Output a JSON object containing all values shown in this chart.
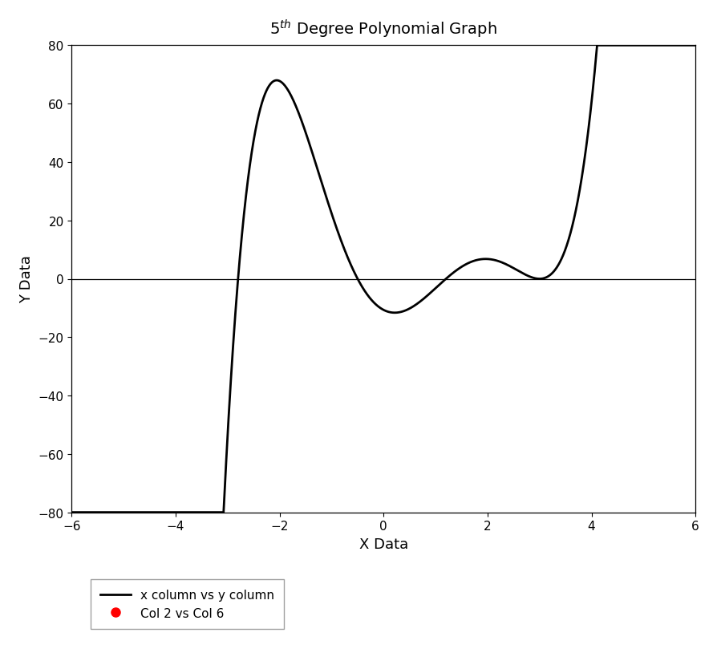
{
  "title": "5$^{th}$ Degree Polynomial Graph",
  "xlabel": "X Data",
  "ylabel": "Y Data",
  "xlim": [
    -6,
    6
  ],
  "ylim": [
    -80,
    80
  ],
  "xticks": [
    -6,
    -4,
    -2,
    0,
    2,
    4,
    6
  ],
  "yticks": [
    -80,
    -60,
    -40,
    -20,
    0,
    20,
    40,
    60,
    80
  ],
  "line_color": "#000000",
  "line_width": 2.0,
  "dot_color": "#ff0000",
  "legend_line_label": "x column vs y column",
  "legend_dot_label": "Col 2 vs Col 6",
  "poly_roots": [
    -2.8,
    -0.5,
    1.2,
    3.0,
    3.0
  ],
  "poly_scale_target_max": 68.0,
  "background_color": "#ffffff",
  "font_size": 13,
  "title_font_size": 14
}
